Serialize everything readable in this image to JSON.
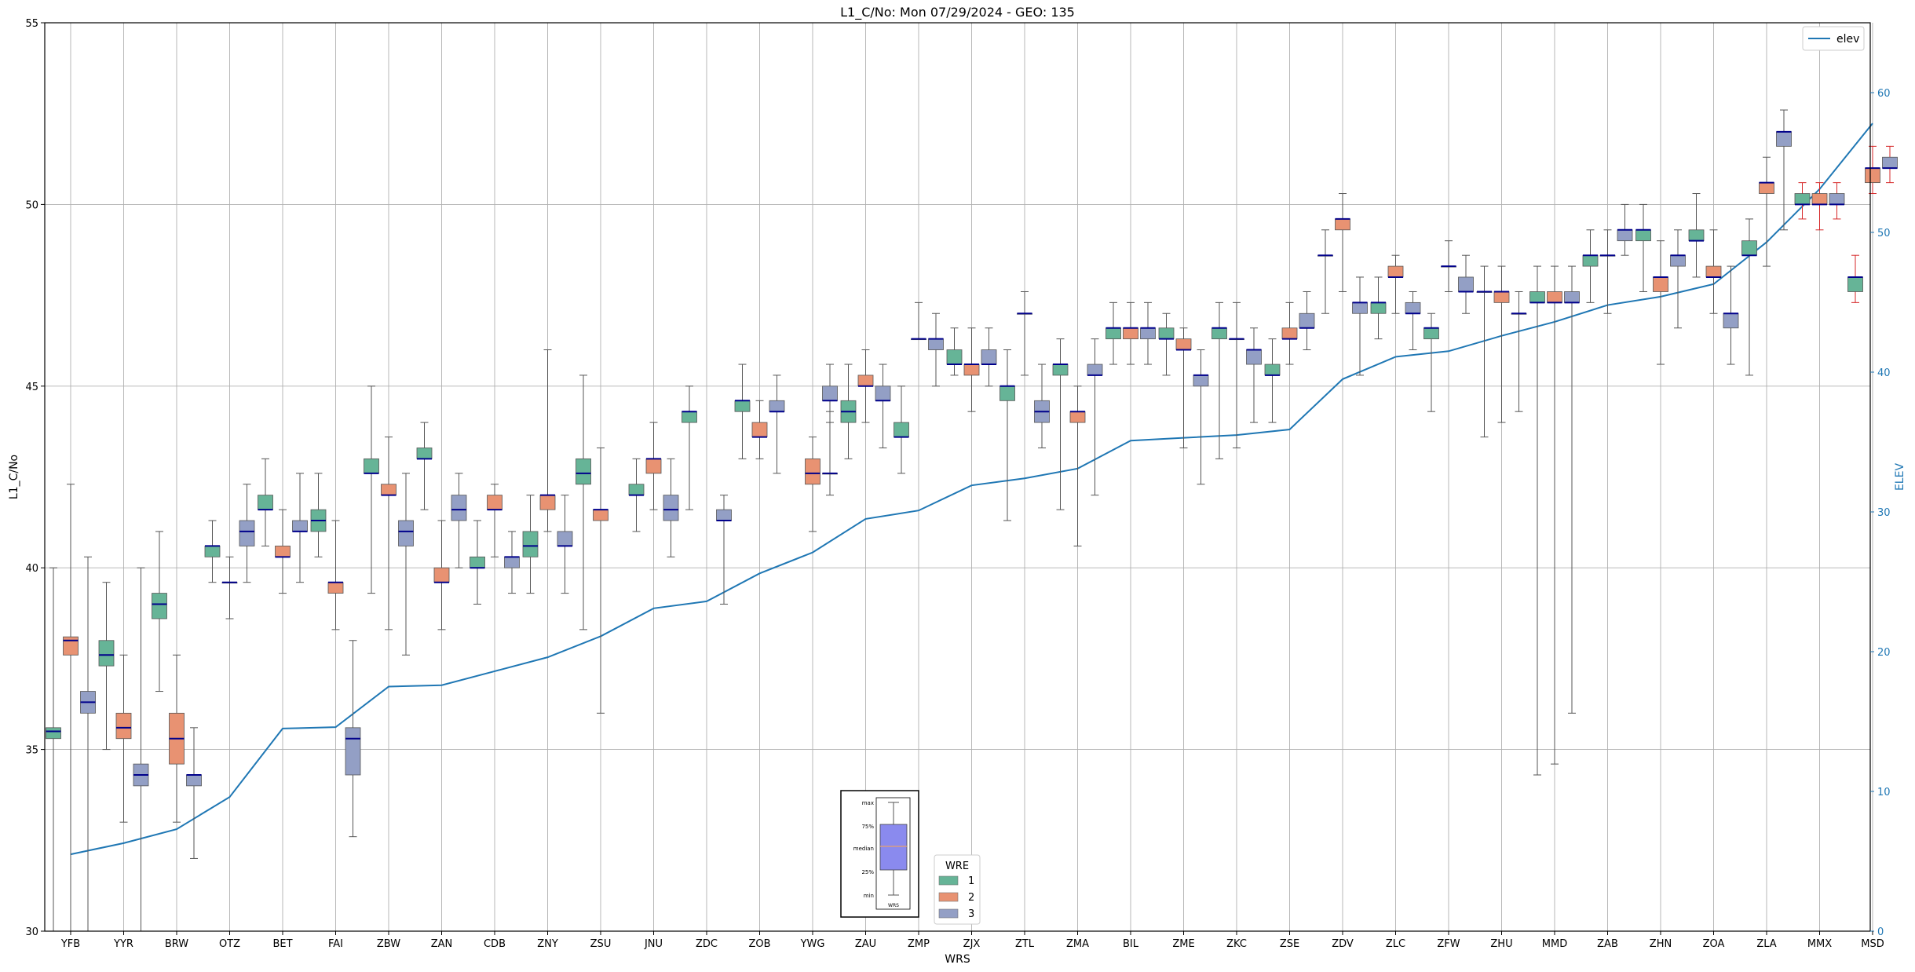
{
  "chart_data": {
    "type": "box",
    "title": "L1_C/No: Mon 07/29/2024 - GEO: 135",
    "xlabel": "WRS",
    "ylabel": "L1_C/No",
    "y2label": "ELEV",
    "ylim": [
      30,
      55
    ],
    "y2lim": [
      0,
      65
    ],
    "yticks": [
      30,
      35,
      40,
      45,
      50,
      55
    ],
    "y2ticks": [
      0,
      10,
      20,
      30,
      40,
      50,
      60
    ],
    "grid": true,
    "categories": [
      "YFB",
      "YYR",
      "BRW",
      "OTZ",
      "BET",
      "FAI",
      "ZBW",
      "ZAN",
      "CDB",
      "ZNY",
      "ZSU",
      "JNU",
      "ZDC",
      "ZOB",
      "YWG",
      "ZAU",
      "ZMP",
      "ZJX",
      "ZTL",
      "ZMA",
      "BIL",
      "ZME",
      "ZKC",
      "ZSE",
      "ZDV",
      "ZLC",
      "ZFW",
      "ZHU",
      "MMD",
      "ZAB",
      "ZHN",
      "ZOA",
      "ZLA",
      "MMX",
      "MSD"
    ],
    "wre_colors": {
      "1": "#66b497",
      "2": "#e89272",
      "3": "#939fc5"
    },
    "boxes": [
      {
        "station": "YFB",
        "wre": "1",
        "min": 30.0,
        "q1": 35.3,
        "median": 35.5,
        "q3": 35.6,
        "max": 40.0
      },
      {
        "station": "YFB",
        "wre": "2",
        "min": 30.0,
        "q1": 37.6,
        "median": 38.0,
        "q3": 38.1,
        "max": 42.3
      },
      {
        "station": "YFB",
        "wre": "3",
        "min": 30.0,
        "q1": 36.0,
        "median": 36.3,
        "q3": 36.6,
        "max": 40.3
      },
      {
        "station": "YYR",
        "wre": "1",
        "min": 35.0,
        "q1": 37.3,
        "median": 37.6,
        "q3": 38.0,
        "max": 39.6
      },
      {
        "station": "YYR",
        "wre": "2",
        "min": 33.0,
        "q1": 35.3,
        "median": 35.6,
        "q3": 36.0,
        "max": 37.6
      },
      {
        "station": "YYR",
        "wre": "3",
        "min": 30.0,
        "q1": 34.0,
        "median": 34.3,
        "q3": 34.6,
        "max": 40.0
      },
      {
        "station": "BRW",
        "wre": "1",
        "min": 36.6,
        "q1": 38.6,
        "median": 39.0,
        "q3": 39.3,
        "max": 41.0
      },
      {
        "station": "BRW",
        "wre": "2",
        "min": 33.0,
        "q1": 34.6,
        "median": 35.3,
        "q3": 36.0,
        "max": 37.6
      },
      {
        "station": "BRW",
        "wre": "3",
        "min": 32.0,
        "q1": 34.0,
        "median": 34.3,
        "q3": 34.3,
        "max": 35.6
      },
      {
        "station": "OTZ",
        "wre": "1",
        "min": 39.6,
        "q1": 40.3,
        "median": 40.6,
        "q3": 40.6,
        "max": 41.3
      },
      {
        "station": "OTZ",
        "wre": "2",
        "min": 38.6,
        "q1": 39.6,
        "median": 39.6,
        "q3": 39.6,
        "max": 40.3
      },
      {
        "station": "OTZ",
        "wre": "3",
        "min": 39.6,
        "q1": 40.6,
        "median": 41.0,
        "q3": 41.3,
        "max": 42.3
      },
      {
        "station": "BET",
        "wre": "1",
        "min": 40.6,
        "q1": 41.6,
        "median": 41.6,
        "q3": 42.0,
        "max": 43.0
      },
      {
        "station": "BET",
        "wre": "2",
        "min": 39.3,
        "q1": 40.3,
        "median": 40.3,
        "q3": 40.6,
        "max": 41.6
      },
      {
        "station": "BET",
        "wre": "3",
        "min": 39.6,
        "q1": 41.0,
        "median": 41.0,
        "q3": 41.3,
        "max": 42.6
      },
      {
        "station": "FAI",
        "wre": "1",
        "min": 40.3,
        "q1": 41.0,
        "median": 41.3,
        "q3": 41.6,
        "max": 42.6
      },
      {
        "station": "FAI",
        "wre": "2",
        "min": 38.3,
        "q1": 39.3,
        "median": 39.6,
        "q3": 39.6,
        "max": 41.3
      },
      {
        "station": "FAI",
        "wre": "3",
        "min": 32.6,
        "q1": 34.3,
        "median": 35.3,
        "q3": 35.6,
        "max": 38.0
      },
      {
        "station": "ZBW",
        "wre": "1",
        "min": 39.3,
        "q1": 42.6,
        "median": 42.6,
        "q3": 43.0,
        "max": 45.0
      },
      {
        "station": "ZBW",
        "wre": "2",
        "min": 38.3,
        "q1": 42.0,
        "median": 42.0,
        "q3": 42.3,
        "max": 43.6
      },
      {
        "station": "ZBW",
        "wre": "3",
        "min": 37.6,
        "q1": 40.6,
        "median": 41.0,
        "q3": 41.3,
        "max": 42.6
      },
      {
        "station": "ZAN",
        "wre": "1",
        "min": 41.6,
        "q1": 43.0,
        "median": 43.0,
        "q3": 43.3,
        "max": 44.0
      },
      {
        "station": "ZAN",
        "wre": "2",
        "min": 38.3,
        "q1": 39.6,
        "median": 39.6,
        "q3": 40.0,
        "max": 41.3
      },
      {
        "station": "ZAN",
        "wre": "3",
        "min": 40.0,
        "q1": 41.3,
        "median": 41.6,
        "q3": 42.0,
        "max": 42.6
      },
      {
        "station": "CDB",
        "wre": "1",
        "min": 39.0,
        "q1": 40.0,
        "median": 40.0,
        "q3": 40.3,
        "max": 41.3
      },
      {
        "station": "CDB",
        "wre": "2",
        "min": 40.3,
        "q1": 41.6,
        "median": 41.6,
        "q3": 42.0,
        "max": 42.3
      },
      {
        "station": "CDB",
        "wre": "3",
        "min": 39.3,
        "q1": 40.0,
        "median": 40.3,
        "q3": 40.3,
        "max": 41.0
      },
      {
        "station": "ZNY",
        "wre": "1",
        "min": 39.3,
        "q1": 40.3,
        "median": 40.6,
        "q3": 41.0,
        "max": 42.0
      },
      {
        "station": "ZNY",
        "wre": "2",
        "min": 41.0,
        "q1": 41.6,
        "median": 42.0,
        "q3": 42.0,
        "max": 46.0
      },
      {
        "station": "ZNY",
        "wre": "3",
        "min": 39.3,
        "q1": 40.6,
        "median": 40.6,
        "q3": 41.0,
        "max": 42.0
      },
      {
        "station": "ZSU",
        "wre": "1",
        "min": 38.3,
        "q1": 42.3,
        "median": 42.6,
        "q3": 43.0,
        "max": 45.3
      },
      {
        "station": "ZSU",
        "wre": "2",
        "min": 36.0,
        "q1": 41.3,
        "median": 41.6,
        "q3": 41.6,
        "max": 43.3
      },
      {
        "station": "JNU",
        "wre": "1",
        "min": 41.0,
        "q1": 42.0,
        "median": 42.0,
        "q3": 42.3,
        "max": 43.0
      },
      {
        "station": "JNU",
        "wre": "2",
        "min": 41.6,
        "q1": 42.6,
        "median": 43.0,
        "q3": 43.0,
        "max": 44.0
      },
      {
        "station": "JNU",
        "wre": "3",
        "min": 40.3,
        "q1": 41.3,
        "median": 41.6,
        "q3": 42.0,
        "max": 43.0
      },
      {
        "station": "ZDC",
        "wre": "1",
        "min": 41.6,
        "q1": 44.0,
        "median": 44.3,
        "q3": 44.3,
        "max": 45.0
      },
      {
        "station": "ZDC",
        "wre": "3",
        "min": 39.0,
        "q1": 41.3,
        "median": 41.3,
        "q3": 41.6,
        "max": 42.0
      },
      {
        "station": "ZOB",
        "wre": "1",
        "min": 43.0,
        "q1": 44.3,
        "median": 44.6,
        "q3": 44.6,
        "max": 45.6
      },
      {
        "station": "ZOB",
        "wre": "2",
        "min": 43.0,
        "q1": 43.6,
        "median": 43.6,
        "q3": 44.0,
        "max": 44.6
      },
      {
        "station": "ZOB",
        "wre": "3",
        "min": 42.6,
        "q1": 44.3,
        "median": 44.3,
        "q3": 44.6,
        "max": 45.3
      },
      {
        "station": "YWG",
        "wre": "3",
        "min": 42.0,
        "q1": 42.6,
        "median": 42.6,
        "q3": 42.6,
        "max": 44.3
      },
      {
        "station": "YWG",
        "wre": "2",
        "min": 41.0,
        "q1": 42.3,
        "median": 42.6,
        "q3": 43.0,
        "max": 43.6
      },
      {
        "station": "YWG",
        "wre": "3",
        "min": 44.0,
        "q1": 44.6,
        "median": 44.6,
        "q3": 45.0,
        "max": 45.6
      },
      {
        "station": "ZAU",
        "wre": "1",
        "min": 43.0,
        "q1": 44.0,
        "median": 44.3,
        "q3": 44.6,
        "max": 45.6
      },
      {
        "station": "ZAU",
        "wre": "2",
        "min": 44.0,
        "q1": 45.0,
        "median": 45.0,
        "q3": 45.3,
        "max": 46.0
      },
      {
        "station": "ZAU",
        "wre": "3",
        "min": 43.3,
        "q1": 44.6,
        "median": 44.6,
        "q3": 45.0,
        "max": 45.6
      },
      {
        "station": "ZMP",
        "wre": "1",
        "min": 42.6,
        "q1": 43.6,
        "median": 43.6,
        "q3": 44.0,
        "max": 45.0
      },
      {
        "station": "ZMP",
        "wre": "2",
        "min": 46.3,
        "q1": 46.3,
        "median": 46.3,
        "q3": 46.3,
        "max": 47.3
      },
      {
        "station": "ZMP",
        "wre": "3",
        "min": 45.0,
        "q1": 46.0,
        "median": 46.3,
        "q3": 46.3,
        "max": 47.0
      },
      {
        "station": "ZJX",
        "wre": "1",
        "min": 45.3,
        "q1": 45.6,
        "median": 45.6,
        "q3": 46.0,
        "max": 46.6
      },
      {
        "station": "ZJX",
        "wre": "2",
        "min": 44.3,
        "q1": 45.3,
        "median": 45.6,
        "q3": 45.6,
        "max": 46.6
      },
      {
        "station": "ZJX",
        "wre": "3",
        "min": 45.0,
        "q1": 45.6,
        "median": 45.6,
        "q3": 46.0,
        "max": 46.6
      },
      {
        "station": "ZTL",
        "wre": "1",
        "min": 41.3,
        "q1": 44.6,
        "median": 45.0,
        "q3": 45.0,
        "max": 46.0
      },
      {
        "station": "ZTL",
        "wre": "2",
        "min": 45.3,
        "q1": 47.0,
        "median": 47.0,
        "q3": 47.0,
        "max": 47.6
      },
      {
        "station": "ZTL",
        "wre": "3",
        "min": 43.3,
        "q1": 44.0,
        "median": 44.3,
        "q3": 44.6,
        "max": 45.6
      },
      {
        "station": "ZMA",
        "wre": "1",
        "min": 41.6,
        "q1": 45.3,
        "median": 45.6,
        "q3": 45.6,
        "max": 46.3
      },
      {
        "station": "ZMA",
        "wre": "2",
        "min": 40.6,
        "q1": 44.0,
        "median": 44.3,
        "q3": 44.3,
        "max": 45.0
      },
      {
        "station": "ZMA",
        "wre": "3",
        "min": 42.0,
        "q1": 45.3,
        "median": 45.3,
        "q3": 45.6,
        "max": 46.3
      },
      {
        "station": "BIL",
        "wre": "1",
        "min": 45.6,
        "q1": 46.3,
        "median": 46.6,
        "q3": 46.6,
        "max": 47.3
      },
      {
        "station": "BIL",
        "wre": "2",
        "min": 45.6,
        "q1": 46.3,
        "median": 46.6,
        "q3": 46.6,
        "max": 47.3
      },
      {
        "station": "BIL",
        "wre": "3",
        "min": 45.6,
        "q1": 46.3,
        "median": 46.6,
        "q3": 46.6,
        "max": 47.3
      },
      {
        "station": "ZME",
        "wre": "1",
        "min": 45.3,
        "q1": 46.3,
        "median": 46.3,
        "q3": 46.6,
        "max": 47.0
      },
      {
        "station": "ZME",
        "wre": "2",
        "min": 43.3,
        "q1": 46.0,
        "median": 46.0,
        "q3": 46.3,
        "max": 46.6
      },
      {
        "station": "ZME",
        "wre": "3",
        "min": 42.3,
        "q1": 45.0,
        "median": 45.3,
        "q3": 45.3,
        "max": 46.0
      },
      {
        "station": "ZKC",
        "wre": "1",
        "min": 43.0,
        "q1": 46.3,
        "median": 46.6,
        "q3": 46.6,
        "max": 47.3
      },
      {
        "station": "ZKC",
        "wre": "2",
        "min": 43.3,
        "q1": 46.3,
        "median": 46.3,
        "q3": 46.3,
        "max": 47.3
      },
      {
        "station": "ZKC",
        "wre": "3",
        "min": 44.0,
        "q1": 45.6,
        "median": 46.0,
        "q3": 46.0,
        "max": 46.6
      },
      {
        "station": "ZSE",
        "wre": "1",
        "min": 44.0,
        "q1": 45.3,
        "median": 45.3,
        "q3": 45.6,
        "max": 46.3
      },
      {
        "station": "ZSE",
        "wre": "2",
        "min": 45.6,
        "q1": 46.3,
        "median": 46.3,
        "q3": 46.6,
        "max": 47.3
      },
      {
        "station": "ZSE",
        "wre": "3",
        "min": 46.0,
        "q1": 46.6,
        "median": 46.6,
        "q3": 47.0,
        "max": 47.6
      },
      {
        "station": "ZDV",
        "wre": "1",
        "min": 47.0,
        "q1": 48.6,
        "median": 48.6,
        "q3": 48.6,
        "max": 49.3
      },
      {
        "station": "ZDV",
        "wre": "2",
        "min": 47.6,
        "q1": 49.3,
        "median": 49.6,
        "q3": 49.6,
        "max": 50.3
      },
      {
        "station": "ZDV",
        "wre": "3",
        "min": 45.3,
        "q1": 47.0,
        "median": 47.3,
        "q3": 47.3,
        "max": 48.0
      },
      {
        "station": "ZLC",
        "wre": "1",
        "min": 46.3,
        "q1": 47.0,
        "median": 47.3,
        "q3": 47.3,
        "max": 48.0
      },
      {
        "station": "ZLC",
        "wre": "2",
        "min": 47.0,
        "q1": 48.0,
        "median": 48.0,
        "q3": 48.3,
        "max": 48.6
      },
      {
        "station": "ZLC",
        "wre": "3",
        "min": 46.0,
        "q1": 47.0,
        "median": 47.0,
        "q3": 47.3,
        "max": 47.6
      },
      {
        "station": "ZFW",
        "wre": "1",
        "min": 44.3,
        "q1": 46.3,
        "median": 46.6,
        "q3": 46.6,
        "max": 47.0
      },
      {
        "station": "ZFW",
        "wre": "2",
        "min": 47.6,
        "q1": 48.3,
        "median": 48.3,
        "q3": 48.3,
        "max": 49.0
      },
      {
        "station": "ZFW",
        "wre": "3",
        "min": 47.0,
        "q1": 47.6,
        "median": 47.6,
        "q3": 48.0,
        "max": 48.6
      },
      {
        "station": "ZHU",
        "wre": "1",
        "min": 43.6,
        "q1": 47.6,
        "median": 47.6,
        "q3": 47.6,
        "max": 48.3
      },
      {
        "station": "ZHU",
        "wre": "2",
        "min": 44.0,
        "q1": 47.3,
        "median": 47.6,
        "q3": 47.6,
        "max": 48.3
      },
      {
        "station": "ZHU",
        "wre": "3",
        "min": 44.3,
        "q1": 47.0,
        "median": 47.0,
        "q3": 47.0,
        "max": 47.6
      },
      {
        "station": "MMD",
        "wre": "1",
        "min": 34.3,
        "q1": 47.3,
        "median": 47.3,
        "q3": 47.6,
        "max": 48.3
      },
      {
        "station": "MMD",
        "wre": "2",
        "min": 34.6,
        "q1": 47.3,
        "median": 47.3,
        "q3": 47.6,
        "max": 48.3
      },
      {
        "station": "MMD",
        "wre": "3",
        "min": 36.0,
        "q1": 47.3,
        "median": 47.3,
        "q3": 47.6,
        "max": 48.3
      },
      {
        "station": "ZAB",
        "wre": "1",
        "min": 47.3,
        "q1": 48.3,
        "median": 48.6,
        "q3": 48.6,
        "max": 49.3
      },
      {
        "station": "ZAB",
        "wre": "2",
        "min": 47.0,
        "q1": 48.6,
        "median": 48.6,
        "q3": 48.6,
        "max": 49.3
      },
      {
        "station": "ZAB",
        "wre": "3",
        "min": 48.6,
        "q1": 49.0,
        "median": 49.3,
        "q3": 49.3,
        "max": 50.0
      },
      {
        "station": "ZHN",
        "wre": "1",
        "min": 47.6,
        "q1": 49.0,
        "median": 49.3,
        "q3": 49.3,
        "max": 50.0
      },
      {
        "station": "ZHN",
        "wre": "2",
        "min": 45.6,
        "q1": 47.6,
        "median": 48.0,
        "q3": 48.0,
        "max": 49.0
      },
      {
        "station": "ZHN",
        "wre": "3",
        "min": 46.6,
        "q1": 48.3,
        "median": 48.6,
        "q3": 48.6,
        "max": 49.3
      },
      {
        "station": "ZOA",
        "wre": "1",
        "min": 48.0,
        "q1": 49.0,
        "median": 49.0,
        "q3": 49.3,
        "max": 50.3
      },
      {
        "station": "ZOA",
        "wre": "2",
        "min": 47.0,
        "q1": 48.0,
        "median": 48.0,
        "q3": 48.3,
        "max": 49.3
      },
      {
        "station": "ZOA",
        "wre": "3",
        "min": 45.6,
        "q1": 46.6,
        "median": 47.0,
        "q3": 47.0,
        "max": 48.3
      },
      {
        "station": "ZLA",
        "wre": "1",
        "min": 45.3,
        "q1": 48.6,
        "median": 48.6,
        "q3": 49.0,
        "max": 49.6
      },
      {
        "station": "ZLA",
        "wre": "2",
        "min": 48.3,
        "q1": 50.3,
        "median": 50.6,
        "q3": 50.6,
        "max": 51.3
      },
      {
        "station": "ZLA",
        "wre": "3",
        "min": 49.3,
        "q1": 51.6,
        "median": 52.0,
        "q3": 52.0,
        "max": 52.6
      },
      {
        "station": "MMX",
        "wre": "1",
        "min": 49.6,
        "q1": 50.0,
        "median": 50.0,
        "q3": 50.3,
        "max": 50.6
      },
      {
        "station": "MMX",
        "wre": "2",
        "min": 49.3,
        "q1": 50.0,
        "median": 50.0,
        "q3": 50.3,
        "max": 50.6
      },
      {
        "station": "MMX",
        "wre": "3",
        "min": 49.6,
        "q1": 50.0,
        "median": 50.0,
        "q3": 50.3,
        "max": 50.6
      },
      {
        "station": "MSD",
        "wre": "1",
        "min": 47.3,
        "q1": 47.6,
        "median": 48.0,
        "q3": 48.0,
        "max": 48.6
      },
      {
        "station": "MSD",
        "wre": "2",
        "min": 50.3,
        "q1": 50.6,
        "median": 51.0,
        "q3": 51.0,
        "max": 51.6
      },
      {
        "station": "MSD",
        "wre": "3",
        "min": 50.6,
        "q1": 51.0,
        "median": 51.0,
        "q3": 51.3,
        "max": 51.6
      }
    ],
    "elevation_series": {
      "name": "elev",
      "color": "#1f77b4",
      "values": [
        5.5,
        6.3,
        7.3,
        9.6,
        14.5,
        14.6,
        17.5,
        17.6,
        18.6,
        19.6,
        21.1,
        23.1,
        23.6,
        25.6,
        27.1,
        29.5,
        30.1,
        31.9,
        32.4,
        33.1,
        35.1,
        35.3,
        35.5,
        35.9,
        39.5,
        41.1,
        41.5,
        42.6,
        43.6,
        44.8,
        45.4,
        46.3,
        49.3,
        53.1,
        57.8
      ]
    },
    "elev_legend_label": "elev",
    "wre_legend": {
      "title": "WRE",
      "entries": [
        "1",
        "2",
        "3"
      ]
    },
    "key_inset": {
      "labels": [
        "max",
        "75%",
        "median",
        "25%",
        "min"
      ],
      "xlabel": "WRS"
    }
  }
}
